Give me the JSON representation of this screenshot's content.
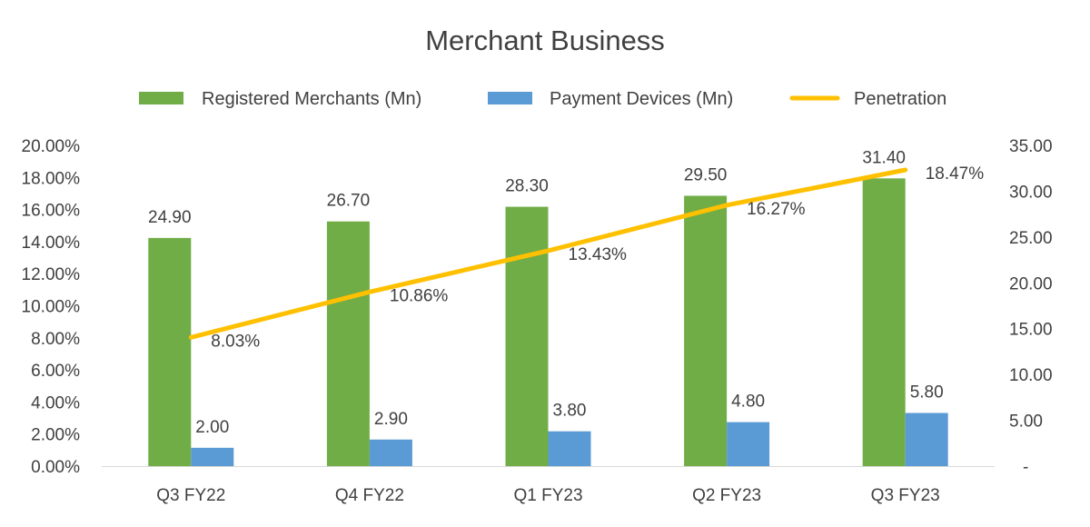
{
  "chart_data": {
    "type": "bar",
    "title": "Merchant Business",
    "categories": [
      "Q3 FY22",
      "Q4 FY22",
      "Q1 FY23",
      "Q2 FY23",
      "Q3 FY23"
    ],
    "series": [
      {
        "name": "Registered Merchants (Mn)",
        "type": "bar",
        "axis": "right",
        "color": "#70AD47",
        "values": [
          24.9,
          26.7,
          28.3,
          29.5,
          31.4
        ],
        "labels": [
          "24.90",
          "26.70",
          "28.30",
          "29.50",
          "31.40"
        ]
      },
      {
        "name": "Payment Devices (Mn)",
        "type": "bar",
        "axis": "right",
        "color": "#5B9BD5",
        "values": [
          2.0,
          2.9,
          3.8,
          4.8,
          5.8
        ],
        "labels": [
          "2.00",
          "2.90",
          "3.80",
          "4.80",
          "5.80"
        ]
      },
      {
        "name": "Penetration",
        "type": "line",
        "axis": "left",
        "color": "#FFC000",
        "values": [
          8.03,
          10.86,
          13.43,
          16.27,
          18.47
        ],
        "labels": [
          "8.03%",
          "10.86%",
          "13.43%",
          "16.27%",
          "18.47%"
        ]
      }
    ],
    "y_left": {
      "min": 0,
      "max": 20,
      "ticks": [
        "0.00%",
        "2.00%",
        "4.00%",
        "6.00%",
        "8.00%",
        "10.00%",
        "12.00%",
        "14.00%",
        "16.00%",
        "18.00%",
        "20.00%"
      ]
    },
    "y_right": {
      "min": 0,
      "max": 35,
      "ticks": [
        "-",
        "5.00",
        "10.00",
        "15.00",
        "20.00",
        "25.00",
        "30.00",
        "35.00"
      ]
    },
    "legend_position": "top",
    "grid": false
  }
}
